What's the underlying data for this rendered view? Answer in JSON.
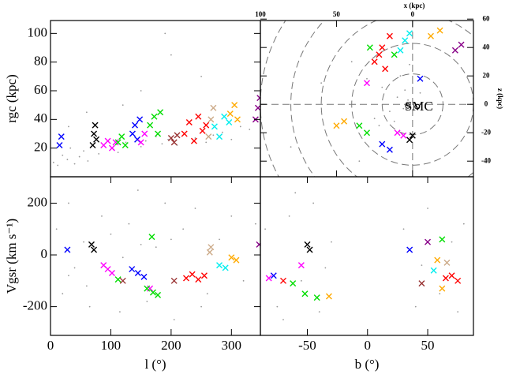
{
  "chart_data": [
    {
      "type": "scatter",
      "ylabel": "rgc (kpc)",
      "xlim": [
        0,
        348
      ],
      "ylim": [
        0,
        109
      ],
      "yticks": [
        20,
        40,
        60,
        80,
        100
      ],
      "series": [
        {
          "color": "#999999",
          "marker": "dot",
          "x": [
            5,
            12,
            20,
            28,
            33,
            40,
            48,
            55,
            62,
            80,
            88,
            105,
            112,
            125,
            150,
            158,
            175,
            185,
            195,
            210,
            222,
            240,
            258,
            270,
            285,
            300,
            315,
            330,
            340,
            60,
            150,
            190,
            250,
            120,
            30,
            200
          ],
          "values": [
            10,
            8,
            15,
            12,
            20,
            9,
            14,
            18,
            11,
            16,
            22,
            19,
            17,
            24,
            21,
            25,
            28,
            23,
            26,
            22,
            30,
            27,
            24,
            29,
            31,
            26,
            35,
            33,
            40,
            45,
            60,
            100,
            70,
            50,
            35,
            85
          ]
        },
        {
          "color": "#0000ff",
          "marker": "x",
          "x": [
            15,
            18,
            136,
            140,
            144,
            148
          ],
          "values": [
            22,
            28,
            30,
            36,
            26,
            40
          ]
        },
        {
          "color": "#000000",
          "marker": "x",
          "x": [
            70,
            72,
            74,
            76
          ],
          "values": [
            22,
            30,
            36,
            26
          ]
        },
        {
          "color": "#ff00ff",
          "marker": "x",
          "x": [
            88,
            95,
            102,
            108,
            150,
            156
          ],
          "values": [
            22,
            25,
            20,
            24,
            24,
            30
          ]
        },
        {
          "color": "#00dd00",
          "marker": "x",
          "x": [
            112,
            118,
            124,
            165,
            172,
            178,
            182
          ],
          "values": [
            24,
            28,
            22,
            36,
            42,
            30,
            45
          ]
        },
        {
          "color": "#993333",
          "marker": "x",
          "x": [
            200,
            205,
            210
          ],
          "values": [
            27,
            24,
            29
          ]
        },
        {
          "color": "#ff0000",
          "marker": "x",
          "x": [
            222,
            230,
            238,
            245,
            252,
            258
          ],
          "values": [
            30,
            38,
            25,
            42,
            32,
            36
          ]
        },
        {
          "color": "#ccaa88",
          "marker": "x",
          "x": [
            262,
            266,
            270
          ],
          "values": [
            28,
            40,
            48
          ]
        },
        {
          "color": "#00eeee",
          "marker": "x",
          "x": [
            272,
            280,
            288,
            296
          ],
          "values": [
            35,
            28,
            42,
            38
          ]
        },
        {
          "color": "#ffaa00",
          "marker": "x",
          "x": [
            298,
            305,
            310
          ],
          "values": [
            44,
            50,
            40
          ]
        },
        {
          "color": "#880088",
          "marker": "x",
          "x": [
            340,
            344,
            347
          ],
          "values": [
            40,
            48,
            55
          ]
        }
      ]
    },
    {
      "type": "scatter",
      "xlabel": "x (kpc)",
      "ylabel": "z (kpc)",
      "annotation": "SMC",
      "xlim": [
        100,
        -40
      ],
      "ylim": [
        -51,
        59
      ],
      "xticks": [
        100,
        50,
        0
      ],
      "yticks": [
        -40,
        -20,
        0,
        20,
        40,
        60
      ],
      "series": [
        {
          "color": "#999999",
          "marker": "dot",
          "x": [
            5,
            10,
            15,
            0,
            -5,
            20,
            25,
            8,
            12,
            30,
            3,
            18,
            22,
            6,
            40,
            60,
            80,
            35,
            14,
            2
          ],
          "values": [
            10,
            5,
            -5,
            15,
            8,
            12,
            -10,
            20,
            -12,
            18,
            3,
            25,
            -15,
            -3,
            30,
            15,
            -30,
            -40,
            40,
            28
          ]
        },
        {
          "color": "#ff0000",
          "marker": "x",
          "x": [
            25,
            20,
            15,
            22,
            18
          ],
          "values": [
            30,
            40,
            48,
            35,
            25
          ]
        },
        {
          "color": "#00dd00",
          "marker": "x",
          "x": [
            28,
            12,
            30,
            35
          ],
          "values": [
            40,
            35,
            -20,
            -15
          ]
        },
        {
          "color": "#00eeee",
          "marker": "x",
          "x": [
            5,
            8,
            2
          ],
          "values": [
            45,
            38,
            50
          ]
        },
        {
          "color": "#ffaa00",
          "marker": "x",
          "x": [
            -12,
            -18,
            50,
            45
          ],
          "values": [
            48,
            52,
            -15,
            -12
          ]
        },
        {
          "color": "#880088",
          "marker": "x",
          "x": [
            -28,
            -32
          ],
          "values": [
            38,
            42
          ]
        },
        {
          "color": "#0000ff",
          "marker": "x",
          "x": [
            -5,
            20,
            15
          ],
          "values": [
            18,
            -28,
            -32
          ]
        },
        {
          "color": "#ff00ff",
          "marker": "x",
          "x": [
            10,
            6,
            30
          ],
          "values": [
            -20,
            -22,
            15
          ]
        },
        {
          "color": "#000000",
          "marker": "x",
          "x": [
            0,
            2
          ],
          "values": [
            -22,
            -25
          ]
        }
      ]
    },
    {
      "type": "scatter",
      "xlabel": "l (°)",
      "ylabel": "Vgsr (km s⁻¹)",
      "xlim": [
        0,
        348
      ],
      "ylim": [
        -311,
        302
      ],
      "xticks": [
        0,
        100,
        200,
        300
      ],
      "yticks": [
        -200,
        0,
        200
      ],
      "series": [
        {
          "color": "#999999",
          "marker": "dot",
          "x": [
            10,
            20,
            30,
            40,
            55,
            65,
            85,
            100,
            115,
            130,
            145,
            160,
            175,
            190,
            205,
            220,
            240,
            260,
            280,
            300,
            320,
            340,
            30,
            120,
            250,
            150,
            60,
            200
          ],
          "values": [
            100,
            -150,
            200,
            -50,
            50,
            -200,
            150,
            80,
            -220,
            120,
            250,
            -180,
            30,
            200,
            -250,
            100,
            180,
            -150,
            60,
            150,
            -100,
            120,
            -80,
            -10,
            -200,
            40,
            -120,
            60
          ]
        },
        {
          "color": "#0000ff",
          "marker": "x",
          "x": [
            28,
            135,
            145,
            155
          ],
          "values": [
            20,
            -55,
            -70,
            -85
          ]
        },
        {
          "color": "#000000",
          "marker": "x",
          "x": [
            68,
            72
          ],
          "values": [
            40,
            20
          ]
        },
        {
          "color": "#ff00ff",
          "marker": "x",
          "x": [
            88,
            95,
            102,
            165
          ],
          "values": [
            -40,
            -55,
            -70,
            -130
          ]
        },
        {
          "color": "#00dd00",
          "marker": "x",
          "x": [
            112,
            160,
            170,
            178,
            168
          ],
          "values": [
            -95,
            -130,
            -145,
            -155,
            70
          ]
        },
        {
          "color": "#993333",
          "marker": "x",
          "x": [
            120,
            205
          ],
          "values": [
            -100,
            -100
          ]
        },
        {
          "color": "#ff0000",
          "marker": "x",
          "x": [
            225,
            235,
            245,
            255
          ],
          "values": [
            -90,
            -75,
            -95,
            -80
          ]
        },
        {
          "color": "#ccaa88",
          "marker": "x",
          "x": [
            264,
            266
          ],
          "values": [
            10,
            30
          ]
        },
        {
          "color": "#00eeee",
          "marker": "x",
          "x": [
            280,
            290
          ],
          "values": [
            -40,
            -50
          ]
        },
        {
          "color": "#ffaa00",
          "marker": "x",
          "x": [
            300,
            308
          ],
          "values": [
            -10,
            -20
          ]
        },
        {
          "color": "#880088",
          "marker": "x",
          "x": [
            346
          ],
          "values": [
            40
          ]
        }
      ]
    },
    {
      "type": "scatter",
      "xlabel": "b (°)",
      "xlim": [
        -89,
        88
      ],
      "ylim": [
        -311,
        302
      ],
      "xticks": [
        -50,
        0,
        50
      ],
      "series": [
        {
          "color": "#999999",
          "marker": "dot",
          "x": [
            -85,
            -75,
            -65,
            -55,
            -45,
            -35,
            -30,
            30,
            40,
            50,
            60,
            70,
            80,
            -70,
            -40,
            45,
            75,
            -60
          ],
          "values": [
            100,
            -200,
            150,
            -100,
            200,
            -50,
            50,
            100,
            -200,
            180,
            -150,
            50,
            120,
            -250,
            -220,
            -40,
            -220,
            240
          ]
        },
        {
          "color": "#ff00ff",
          "marker": "x",
          "x": [
            -82,
            -55
          ],
          "values": [
            -90,
            -40
          ]
        },
        {
          "color": "#0000ff",
          "marker": "x",
          "x": [
            -78,
            35
          ],
          "values": [
            -80,
            20
          ]
        },
        {
          "color": "#000000",
          "marker": "x",
          "x": [
            -50,
            -48
          ],
          "values": [
            40,
            20
          ]
        },
        {
          "color": "#00dd00",
          "marker": "x",
          "x": [
            -62,
            -52,
            -42,
            62
          ],
          "values": [
            -110,
            -150,
            -165,
            60
          ]
        },
        {
          "color": "#ffaa00",
          "marker": "x",
          "x": [
            -32,
            58,
            62
          ],
          "values": [
            -160,
            -20,
            -130
          ]
        },
        {
          "color": "#ff0000",
          "marker": "x",
          "x": [
            -70,
            65,
            75,
            70
          ],
          "values": [
            -100,
            -90,
            -100,
            -80
          ]
        },
        {
          "color": "#880088",
          "marker": "x",
          "x": [
            50
          ],
          "values": [
            50
          ]
        },
        {
          "color": "#ccaa88",
          "marker": "x",
          "x": [
            66
          ],
          "values": [
            -30
          ]
        },
        {
          "color": "#993333",
          "marker": "x",
          "x": [
            45
          ],
          "values": [
            -110
          ]
        },
        {
          "color": "#00eeee",
          "marker": "x",
          "x": [
            55
          ],
          "values": [
            -60
          ]
        }
      ]
    }
  ]
}
